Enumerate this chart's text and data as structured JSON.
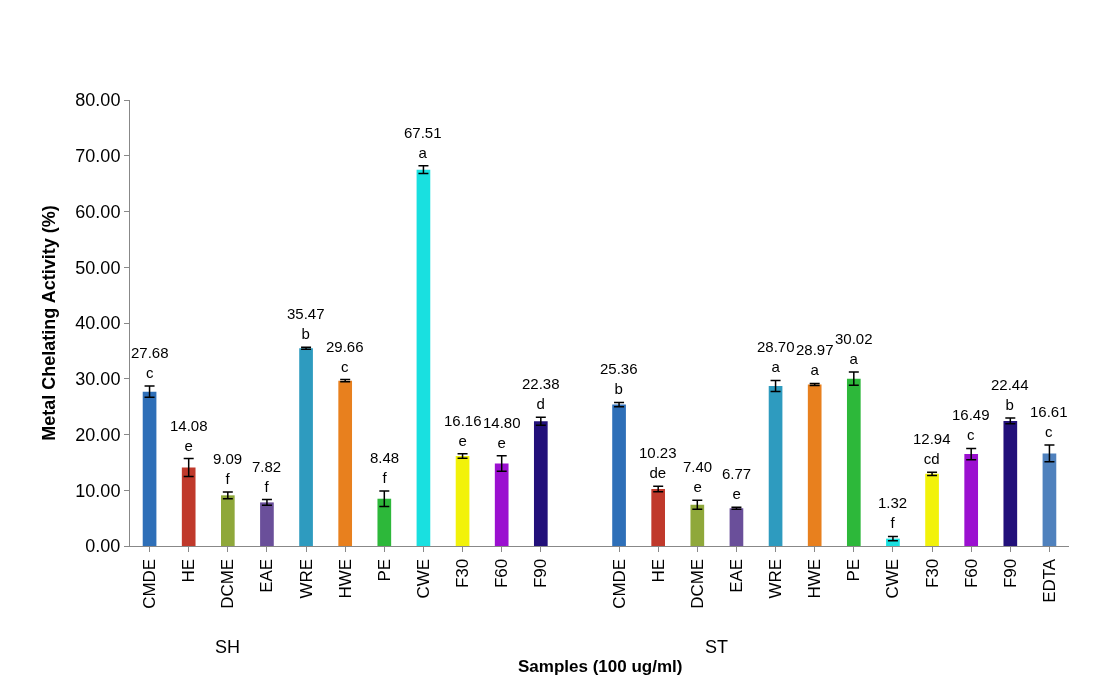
{
  "chart_data": {
    "type": "bar",
    "xlabel": "Samples (100 ug/ml)",
    "ylabel": "Metal Chelating Activity (%)",
    "categories": [
      "CMDE",
      "HE",
      "DCME",
      "EAE",
      "WRE",
      "HWE",
      "PE",
      "CWE",
      "F30",
      "F60",
      "F90",
      null,
      "CMDE",
      "HE",
      "DCME",
      "EAE",
      "WRE",
      "HWE",
      "PE",
      "CWE",
      "F30",
      "F60",
      "F90",
      "EDTA"
    ],
    "values": [
      27.68,
      14.08,
      9.09,
      7.82,
      35.47,
      29.66,
      8.48,
      67.51,
      16.16,
      14.8,
      22.38,
      null,
      25.36,
      10.23,
      7.4,
      6.77,
      28.7,
      28.97,
      30.02,
      1.32,
      12.94,
      16.49,
      22.44,
      16.61
    ],
    "errors": [
      1.0,
      1.6,
      0.6,
      0.5,
      0.2,
      0.2,
      1.4,
      0.7,
      0.4,
      1.4,
      0.7,
      null,
      0.4,
      0.5,
      0.8,
      0.2,
      1.0,
      0.2,
      1.2,
      0.4,
      0.3,
      1.0,
      0.5,
      1.5
    ],
    "colors": [
      "#2e6fb8",
      "#c0392b",
      "#8fa83a",
      "#6a4f9a",
      "#2e9bbf",
      "#e8801e",
      "#2db83a",
      "#19e0e0",
      "#f2f20a",
      "#9b10d0",
      "#22107a",
      "#ffffff",
      "#2e6fb8",
      "#c0392b",
      "#8fa83a",
      "#6a4f9a",
      "#2e9bbf",
      "#e8801e",
      "#2db83a",
      "#19e0e0",
      "#f2f20a",
      "#9b10d0",
      "#22107a",
      "#4f81bd"
    ],
    "value_labels": [
      "27.68\nc",
      "14.08\ne",
      "9.09\nf",
      "7.82\nf",
      "35.47\nb",
      "29.66\nc",
      "8.48\nf",
      "67.51\na",
      "16.16\ne",
      "14.80\ne",
      "22.38\nd",
      null,
      "25.36\nb",
      "10.23\nde",
      "7.40\ne",
      "6.77\ne",
      "28.70\na",
      "28.97\na",
      "30.02\na",
      "1.32\nf",
      "12.94\ncd",
      "16.49\nc",
      "22.44\nb",
      "16.61\nc"
    ],
    "annotations": [
      "SH",
      "ST"
    ],
    "ylim": [
      0,
      80
    ],
    "yticks": [
      {
        "value": 0,
        "label": "0.00"
      },
      {
        "value": 10,
        "label": "10.00"
      },
      {
        "value": 20,
        "label": "20.00"
      },
      {
        "value": 30,
        "label": "30.00"
      },
      {
        "value": 40,
        "label": "40.00"
      },
      {
        "value": 50,
        "label": "50.00"
      },
      {
        "value": 60,
        "label": "60.00"
      },
      {
        "value": 70,
        "label": "70.00"
      },
      {
        "value": 80,
        "label": "80.00"
      }
    ],
    "legend": false
  }
}
